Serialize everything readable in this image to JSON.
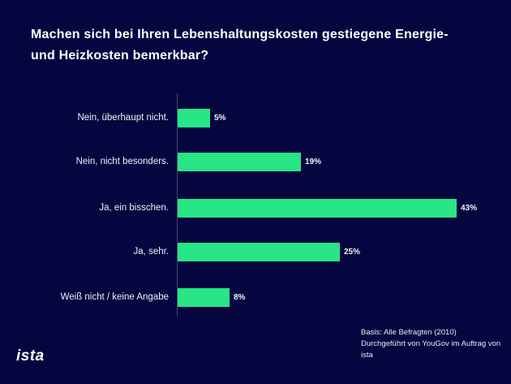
{
  "title": "Machen sich bei Ihren Lebenshaltungskosten gestiegene Energie- und Heizkosten bemerkbar?",
  "logo": "ista",
  "footer": {
    "line1": "Basis: Alle Befragten (2010)",
    "line2": "Durchgeführt von YouGov im Auftrag von ista"
  },
  "colors": {
    "background": "#050640",
    "bar": "#28e586",
    "axis": "#3f4768",
    "text": "#ffffff"
  },
  "chart_data": {
    "type": "bar",
    "orientation": "horizontal",
    "title": "Machen sich bei Ihren Lebenshaltungskosten gestiegene Energie- und Heizkosten bemerkbar?",
    "categories": [
      "Nein, überhaupt nicht.",
      "Nein, nicht besonders.",
      "Ja, ein bisschen.",
      "Ja, sehr.",
      "Weiß nicht / keine Angabe"
    ],
    "values": [
      5,
      19,
      43,
      25,
      8
    ],
    "value_labels": [
      "5%",
      "19%",
      "43%",
      "25%",
      "8%"
    ],
    "unit": "%",
    "xlim": [
      0,
      50
    ],
    "grid": false,
    "legend": false,
    "bar_color": "#28e586",
    "source_line1": "Basis: Alle Befragten (2010)",
    "source_line2": "Durchgeführt von YouGov im Auftrag von ista"
  }
}
